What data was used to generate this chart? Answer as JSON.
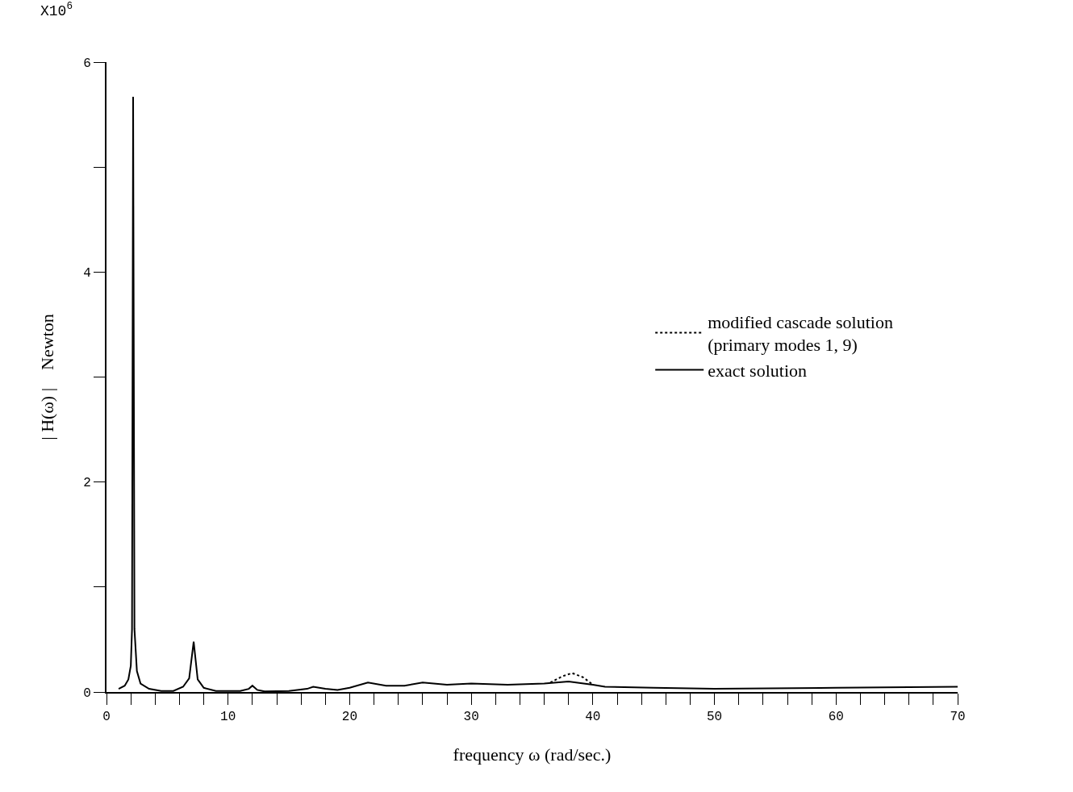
{
  "chart_data": {
    "type": "line",
    "xlabel": "frequency ω (rad/sec.)",
    "ylabel": "| H(ω) |    Newton",
    "annotations": [
      "X10$^{6}$"
    ],
    "xlim": [
      0,
      70
    ],
    "xticks": [
      0,
      {
        "value": 2,
        "label": null
      },
      {
        "value": 4,
        "label": null
      },
      {
        "value": 6,
        "label": null
      },
      {
        "value": 8,
        "label": null
      },
      10,
      {
        "value": 12,
        "label": null
      },
      {
        "value": 14,
        "label": null
      },
      {
        "value": 16,
        "label": null
      },
      {
        "value": 18,
        "label": null
      },
      20,
      {
        "value": 22,
        "label": null
      },
      {
        "value": 24,
        "label": null
      },
      {
        "value": 26,
        "label": null
      },
      {
        "value": 28,
        "label": null
      },
      30,
      {
        "value": 32,
        "label": null
      },
      {
        "value": 34,
        "label": null
      },
      {
        "value": 36,
        "label": null
      },
      {
        "value": 38,
        "label": null
      },
      40,
      {
        "value": 42,
        "label": null
      },
      {
        "value": 44,
        "label": null
      },
      {
        "value": 46,
        "label": null
      },
      {
        "value": 48,
        "label": null
      },
      50,
      {
        "value": 52,
        "label": null
      },
      {
        "value": 54,
        "label": null
      },
      {
        "value": 56,
        "label": null
      },
      {
        "value": 58,
        "label": null
      },
      60,
      {
        "value": 62,
        "label": null
      },
      {
        "value": 64,
        "label": null
      },
      {
        "value": 66,
        "label": null
      },
      {
        "value": 68,
        "label": null
      },
      70
    ],
    "ylim": [
      0,
      6
    ],
    "yticks": [
      0,
      {
        "value": 1,
        "label": null
      },
      2,
      {
        "value": 3,
        "label": null
      },
      4,
      {
        "value": 5,
        "label": null
      },
      6
    ],
    "legend": "right",
    "series": [
      {
        "name": "modified cascade solution\n(primary modes 1, 9)",
        "color": "#000000",
        "line_style": "dotted",
        "x": [
          36.5,
          37.5,
          38.3,
          39.2,
          40.0
        ],
        "values": [
          0.09,
          0.15,
          0.18,
          0.14,
          0.07
        ]
      },
      {
        "name": "exact solution",
        "color": "#000000",
        "line_style": "solid",
        "x": [
          1.0,
          1.5,
          1.8,
          2.0,
          2.1,
          2.19,
          2.3,
          2.5,
          2.8,
          3.5,
          4.5,
          5.5,
          6.3,
          6.8,
          7.17,
          7.5,
          8.0,
          9.0,
          11.0,
          11.7,
          12.0,
          12.4,
          13.0,
          15.0,
          16.5,
          17.0,
          18.0,
          19.0,
          20.0,
          21.5,
          23.0,
          24.5,
          26.0,
          28.0,
          30.0,
          33.0,
          36.0,
          38.0,
          40.0,
          41.0,
          45.0,
          50.0,
          60.0,
          70.0
        ],
        "values": [
          0.03,
          0.06,
          0.12,
          0.25,
          0.6,
          5.67,
          0.6,
          0.2,
          0.08,
          0.03,
          0.01,
          0.01,
          0.05,
          0.13,
          0.48,
          0.12,
          0.04,
          0.01,
          0.01,
          0.03,
          0.06,
          0.02,
          0.005,
          0.01,
          0.03,
          0.05,
          0.03,
          0.02,
          0.04,
          0.09,
          0.06,
          0.06,
          0.09,
          0.07,
          0.08,
          0.07,
          0.08,
          0.1,
          0.07,
          0.05,
          0.04,
          0.03,
          0.04,
          0.05
        ]
      }
    ]
  }
}
